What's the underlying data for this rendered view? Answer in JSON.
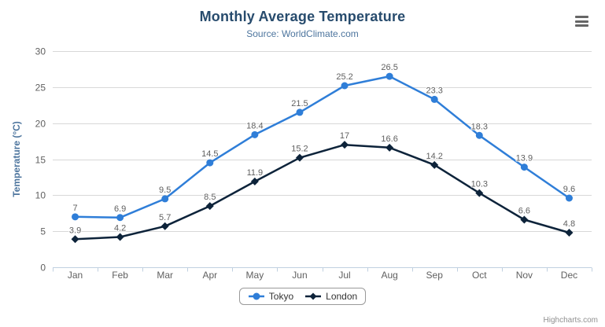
{
  "header": {
    "title": "Monthly Average Temperature",
    "subtitle": "Source: WorldClimate.com"
  },
  "credits": "Highcharts.com",
  "menu_icon": "hamburger-icon",
  "chart_data": {
    "type": "line",
    "title": "Monthly Average Temperature",
    "subtitle": "Source: WorldClimate.com",
    "categories": [
      "Jan",
      "Feb",
      "Mar",
      "Apr",
      "May",
      "Jun",
      "Jul",
      "Aug",
      "Sep",
      "Oct",
      "Nov",
      "Dec"
    ],
    "series": [
      {
        "name": "Tokyo",
        "color": "#2f7ed8",
        "marker": "circle",
        "values": [
          7,
          6.9,
          9.5,
          14.5,
          18.4,
          21.5,
          25.2,
          26.5,
          23.3,
          18.3,
          13.9,
          9.6
        ]
      },
      {
        "name": "London",
        "color": "#0d233a",
        "marker": "diamond",
        "values": [
          3.9,
          4.2,
          5.7,
          8.5,
          11.9,
          15.2,
          17,
          16.6,
          14.2,
          10.3,
          6.6,
          4.8
        ]
      }
    ],
    "xlabel": "",
    "ylabel": "Temperature (°C)",
    "ylim": [
      0,
      30
    ],
    "yticks": [
      0,
      5,
      10,
      15,
      20,
      25,
      30
    ],
    "grid": true,
    "legend_position": "bottom",
    "data_labels": true,
    "colors": {
      "grid_line": "#d8d8d8",
      "axis_line": "#c0d0e0",
      "tick_label": "#606060",
      "title": "#274b6d",
      "subtitle": "#4d759e",
      "data_label": "#606060",
      "legend_border": "#999999",
      "credits": "#909090"
    }
  }
}
